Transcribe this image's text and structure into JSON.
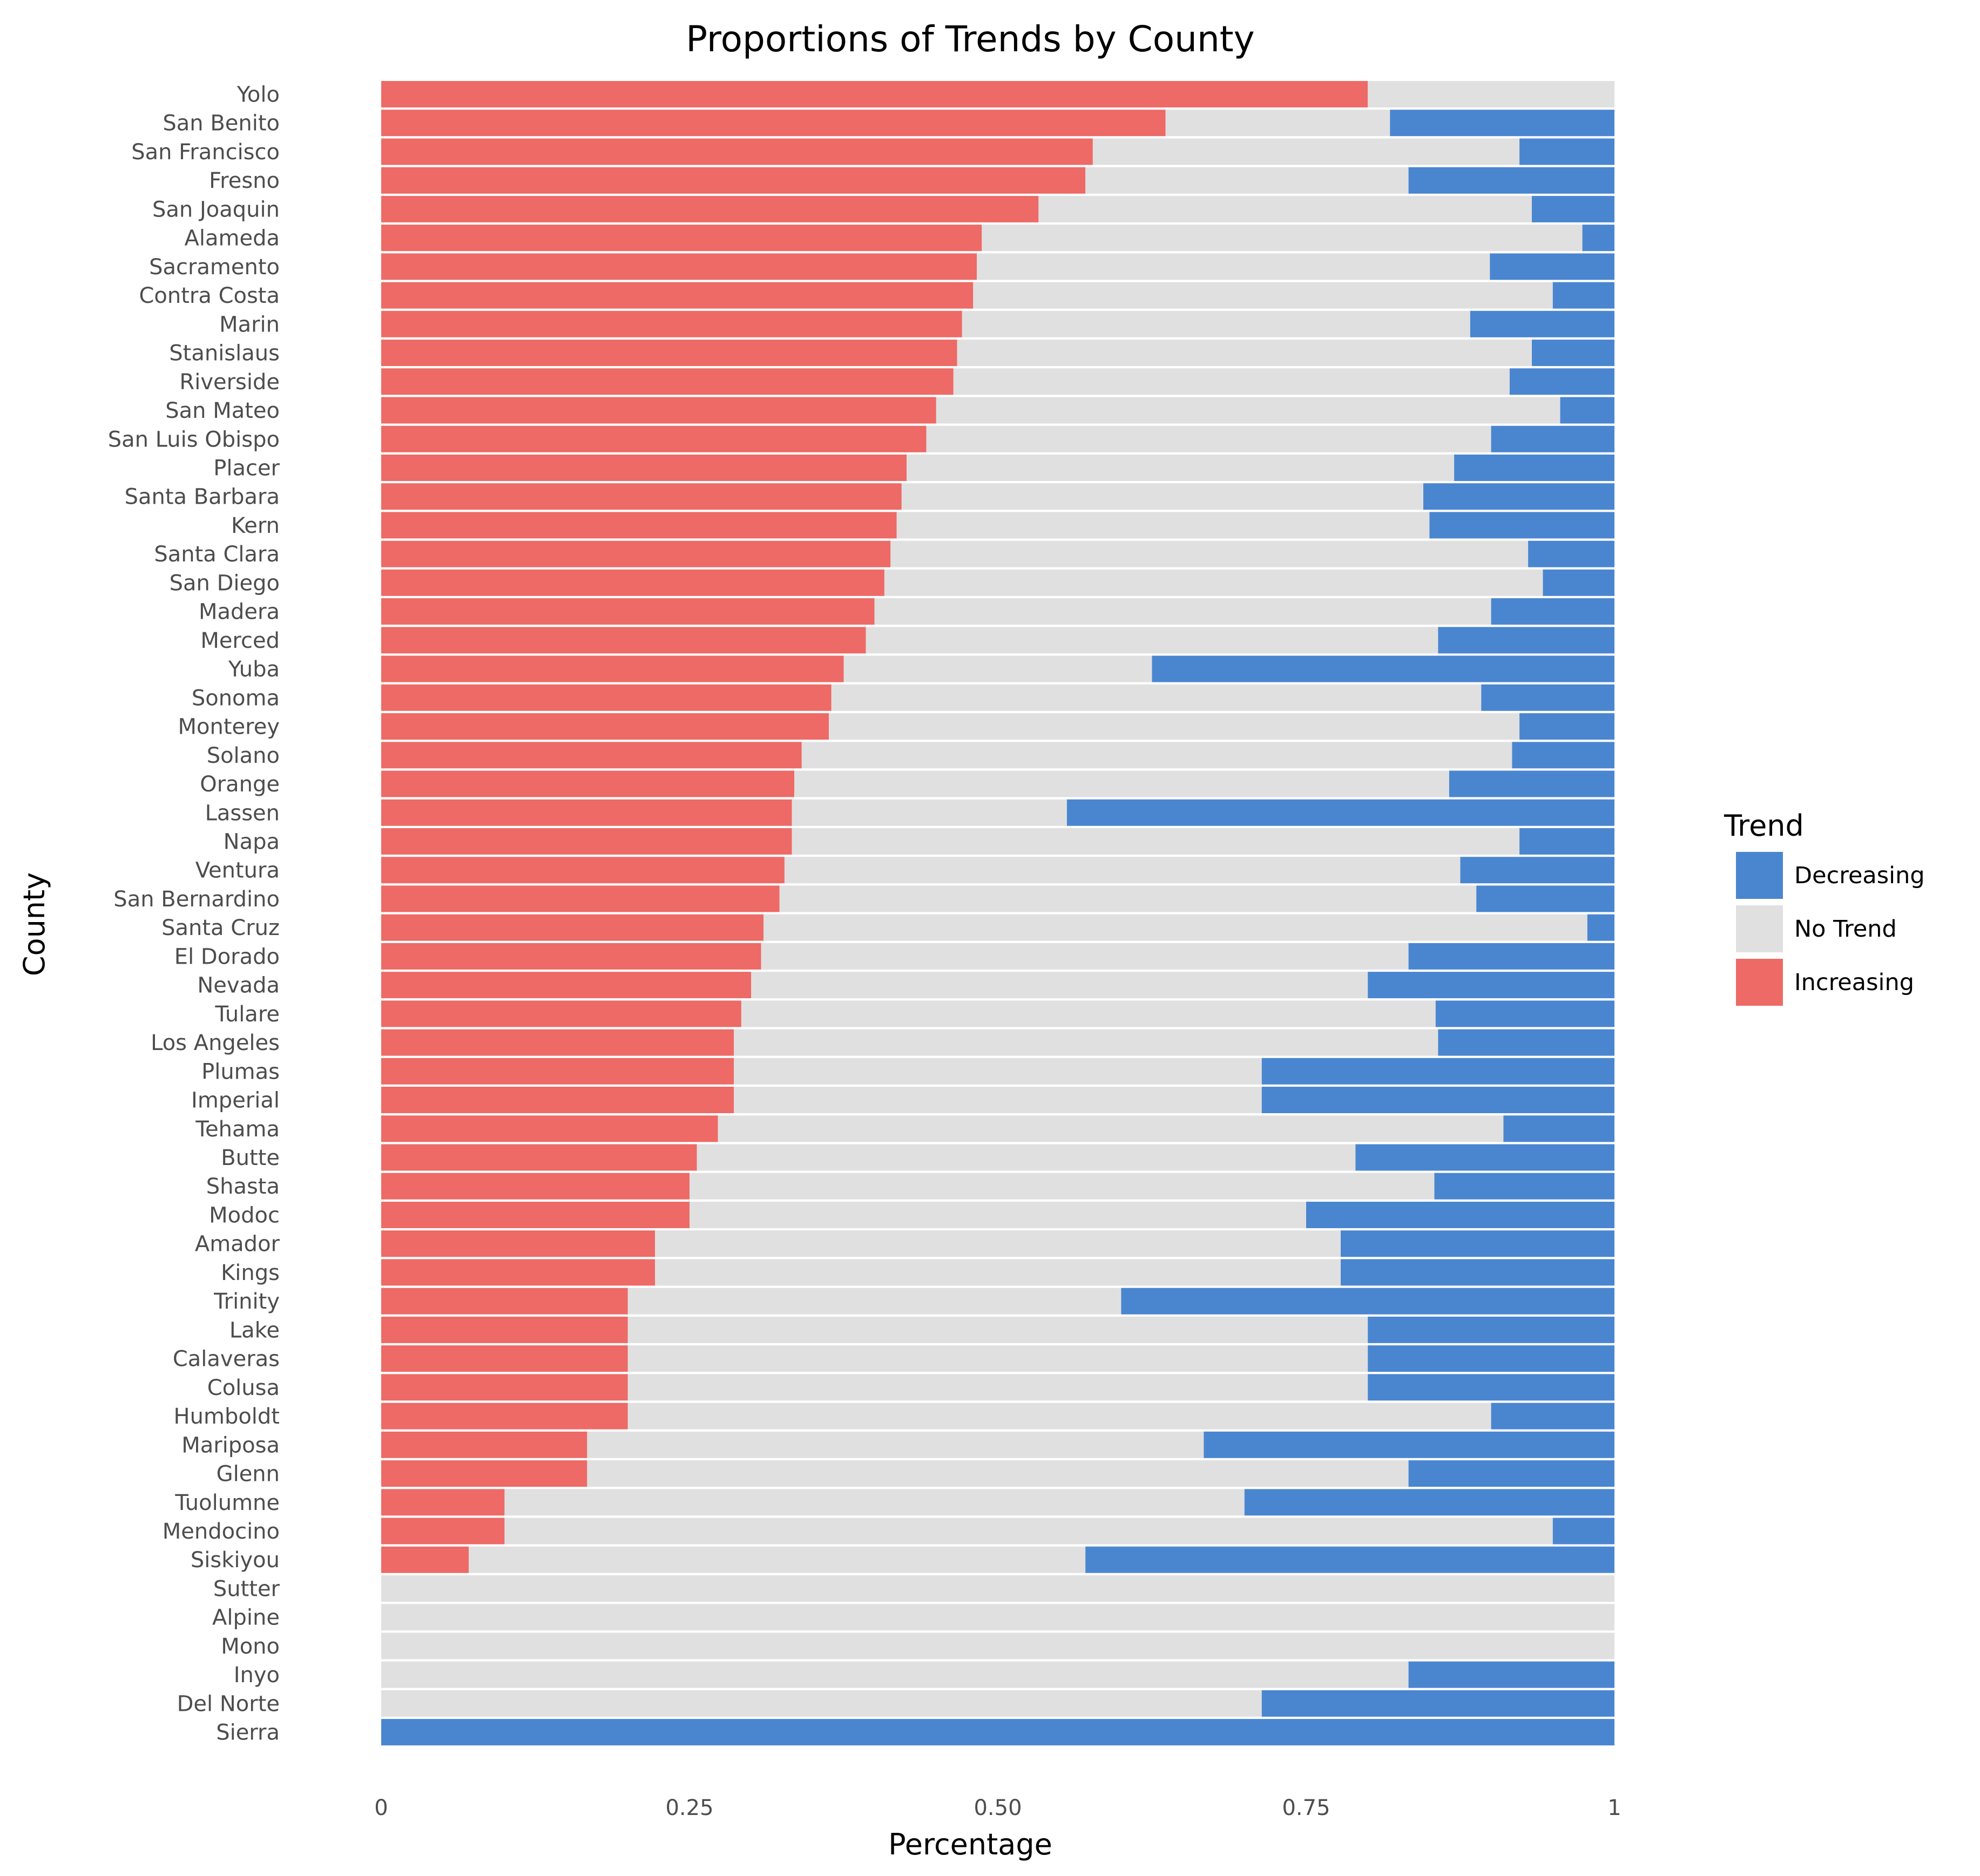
{
  "chart_data": {
    "type": "bar",
    "orientation": "horizontal",
    "stacked": true,
    "title": "Proportions of Trends by County",
    "xlabel": "Percentage",
    "ylabel": "County",
    "xlim": [
      0,
      1
    ],
    "xticks": [
      0,
      0.25,
      0.5,
      0.75,
      1
    ],
    "xtick_labels": [
      "0",
      "0.25",
      "0.50",
      "0.75",
      "1"
    ],
    "grid": false,
    "legend": {
      "title": "Trend",
      "placement": "right",
      "entries": [
        "Decreasing",
        "No Trend",
        "Increasing"
      ]
    },
    "categories": [
      "Yolo",
      "San Benito",
      "San Francisco",
      "Fresno",
      "San Joaquin",
      "Alameda",
      "Sacramento",
      "Contra Costa",
      "Marin",
      "Stanislaus",
      "Riverside",
      "San Mateo",
      "San Luis Obispo",
      "Placer",
      "Santa Barbara",
      "Kern",
      "Santa Clara",
      "San Diego",
      "Madera",
      "Merced",
      "Yuba",
      "Sonoma",
      "Monterey",
      "Solano",
      "Orange",
      "Lassen",
      "Napa",
      "Ventura",
      "San Bernardino",
      "Santa Cruz",
      "El Dorado",
      "Nevada",
      "Tulare",
      "Los Angeles",
      "Plumas",
      "Imperial",
      "Tehama",
      "Butte",
      "Shasta",
      "Modoc",
      "Amador",
      "Kings",
      "Trinity",
      "Lake",
      "Calaveras",
      "Colusa",
      "Humboldt",
      "Mariposa",
      "Glenn",
      "Tuolumne",
      "Mendocino",
      "Siskiyou",
      "Sutter",
      "Alpine",
      "Mono",
      "Inyo",
      "Del Norte",
      "Sierra"
    ],
    "series": [
      {
        "name": "Increasing",
        "color": "#ED6A66",
        "values": [
          0.8,
          0.636,
          0.577,
          0.571,
          0.533,
          0.487,
          0.483,
          0.48,
          0.471,
          0.467,
          0.464,
          0.45,
          0.442,
          0.426,
          0.422,
          0.418,
          0.413,
          0.408,
          0.4,
          0.393,
          0.375,
          0.365,
          0.363,
          0.341,
          0.335,
          0.333,
          0.333,
          0.327,
          0.323,
          0.31,
          0.308,
          0.3,
          0.292,
          0.286,
          0.286,
          0.286,
          0.273,
          0.256,
          0.25,
          0.25,
          0.222,
          0.222,
          0.2,
          0.2,
          0.2,
          0.2,
          0.2,
          0.167,
          0.167,
          0.1,
          0.1,
          0.071,
          0,
          0,
          0,
          0,
          0,
          0
        ]
      },
      {
        "name": "No Trend",
        "color": "#E0E0E0",
        "values": [
          0.2,
          0.182,
          0.346,
          0.262,
          0.4,
          0.487,
          0.416,
          0.47,
          0.412,
          0.466,
          0.451,
          0.506,
          0.458,
          0.444,
          0.423,
          0.432,
          0.517,
          0.534,
          0.5,
          0.464,
          0.25,
          0.527,
          0.56,
          0.576,
          0.531,
          0.223,
          0.59,
          0.548,
          0.565,
          0.668,
          0.525,
          0.5,
          0.563,
          0.571,
          0.428,
          0.428,
          0.637,
          0.534,
          0.604,
          0.5,
          0.556,
          0.556,
          0.4,
          0.6,
          0.6,
          0.6,
          0.7,
          0.5,
          0.666,
          0.6,
          0.85,
          0.5,
          1,
          1,
          1,
          0.833,
          0.714,
          0
        ]
      },
      {
        "name": "Decreasing",
        "color": "#4A86D0",
        "values": [
          0,
          0.182,
          0.077,
          0.167,
          0.067,
          0.026,
          0.101,
          0.05,
          0.117,
          0.067,
          0.085,
          0.044,
          0.1,
          0.13,
          0.155,
          0.15,
          0.07,
          0.058,
          0.1,
          0.143,
          0.375,
          0.108,
          0.077,
          0.083,
          0.134,
          0.444,
          0.077,
          0.125,
          0.112,
          0.022,
          0.167,
          0.2,
          0.145,
          0.143,
          0.286,
          0.286,
          0.09,
          0.21,
          0.146,
          0.25,
          0.222,
          0.222,
          0.4,
          0.2,
          0.2,
          0.2,
          0.1,
          0.333,
          0.167,
          0.3,
          0.05,
          0.429,
          0,
          0,
          0,
          0.167,
          0.286,
          1
        ]
      }
    ]
  }
}
